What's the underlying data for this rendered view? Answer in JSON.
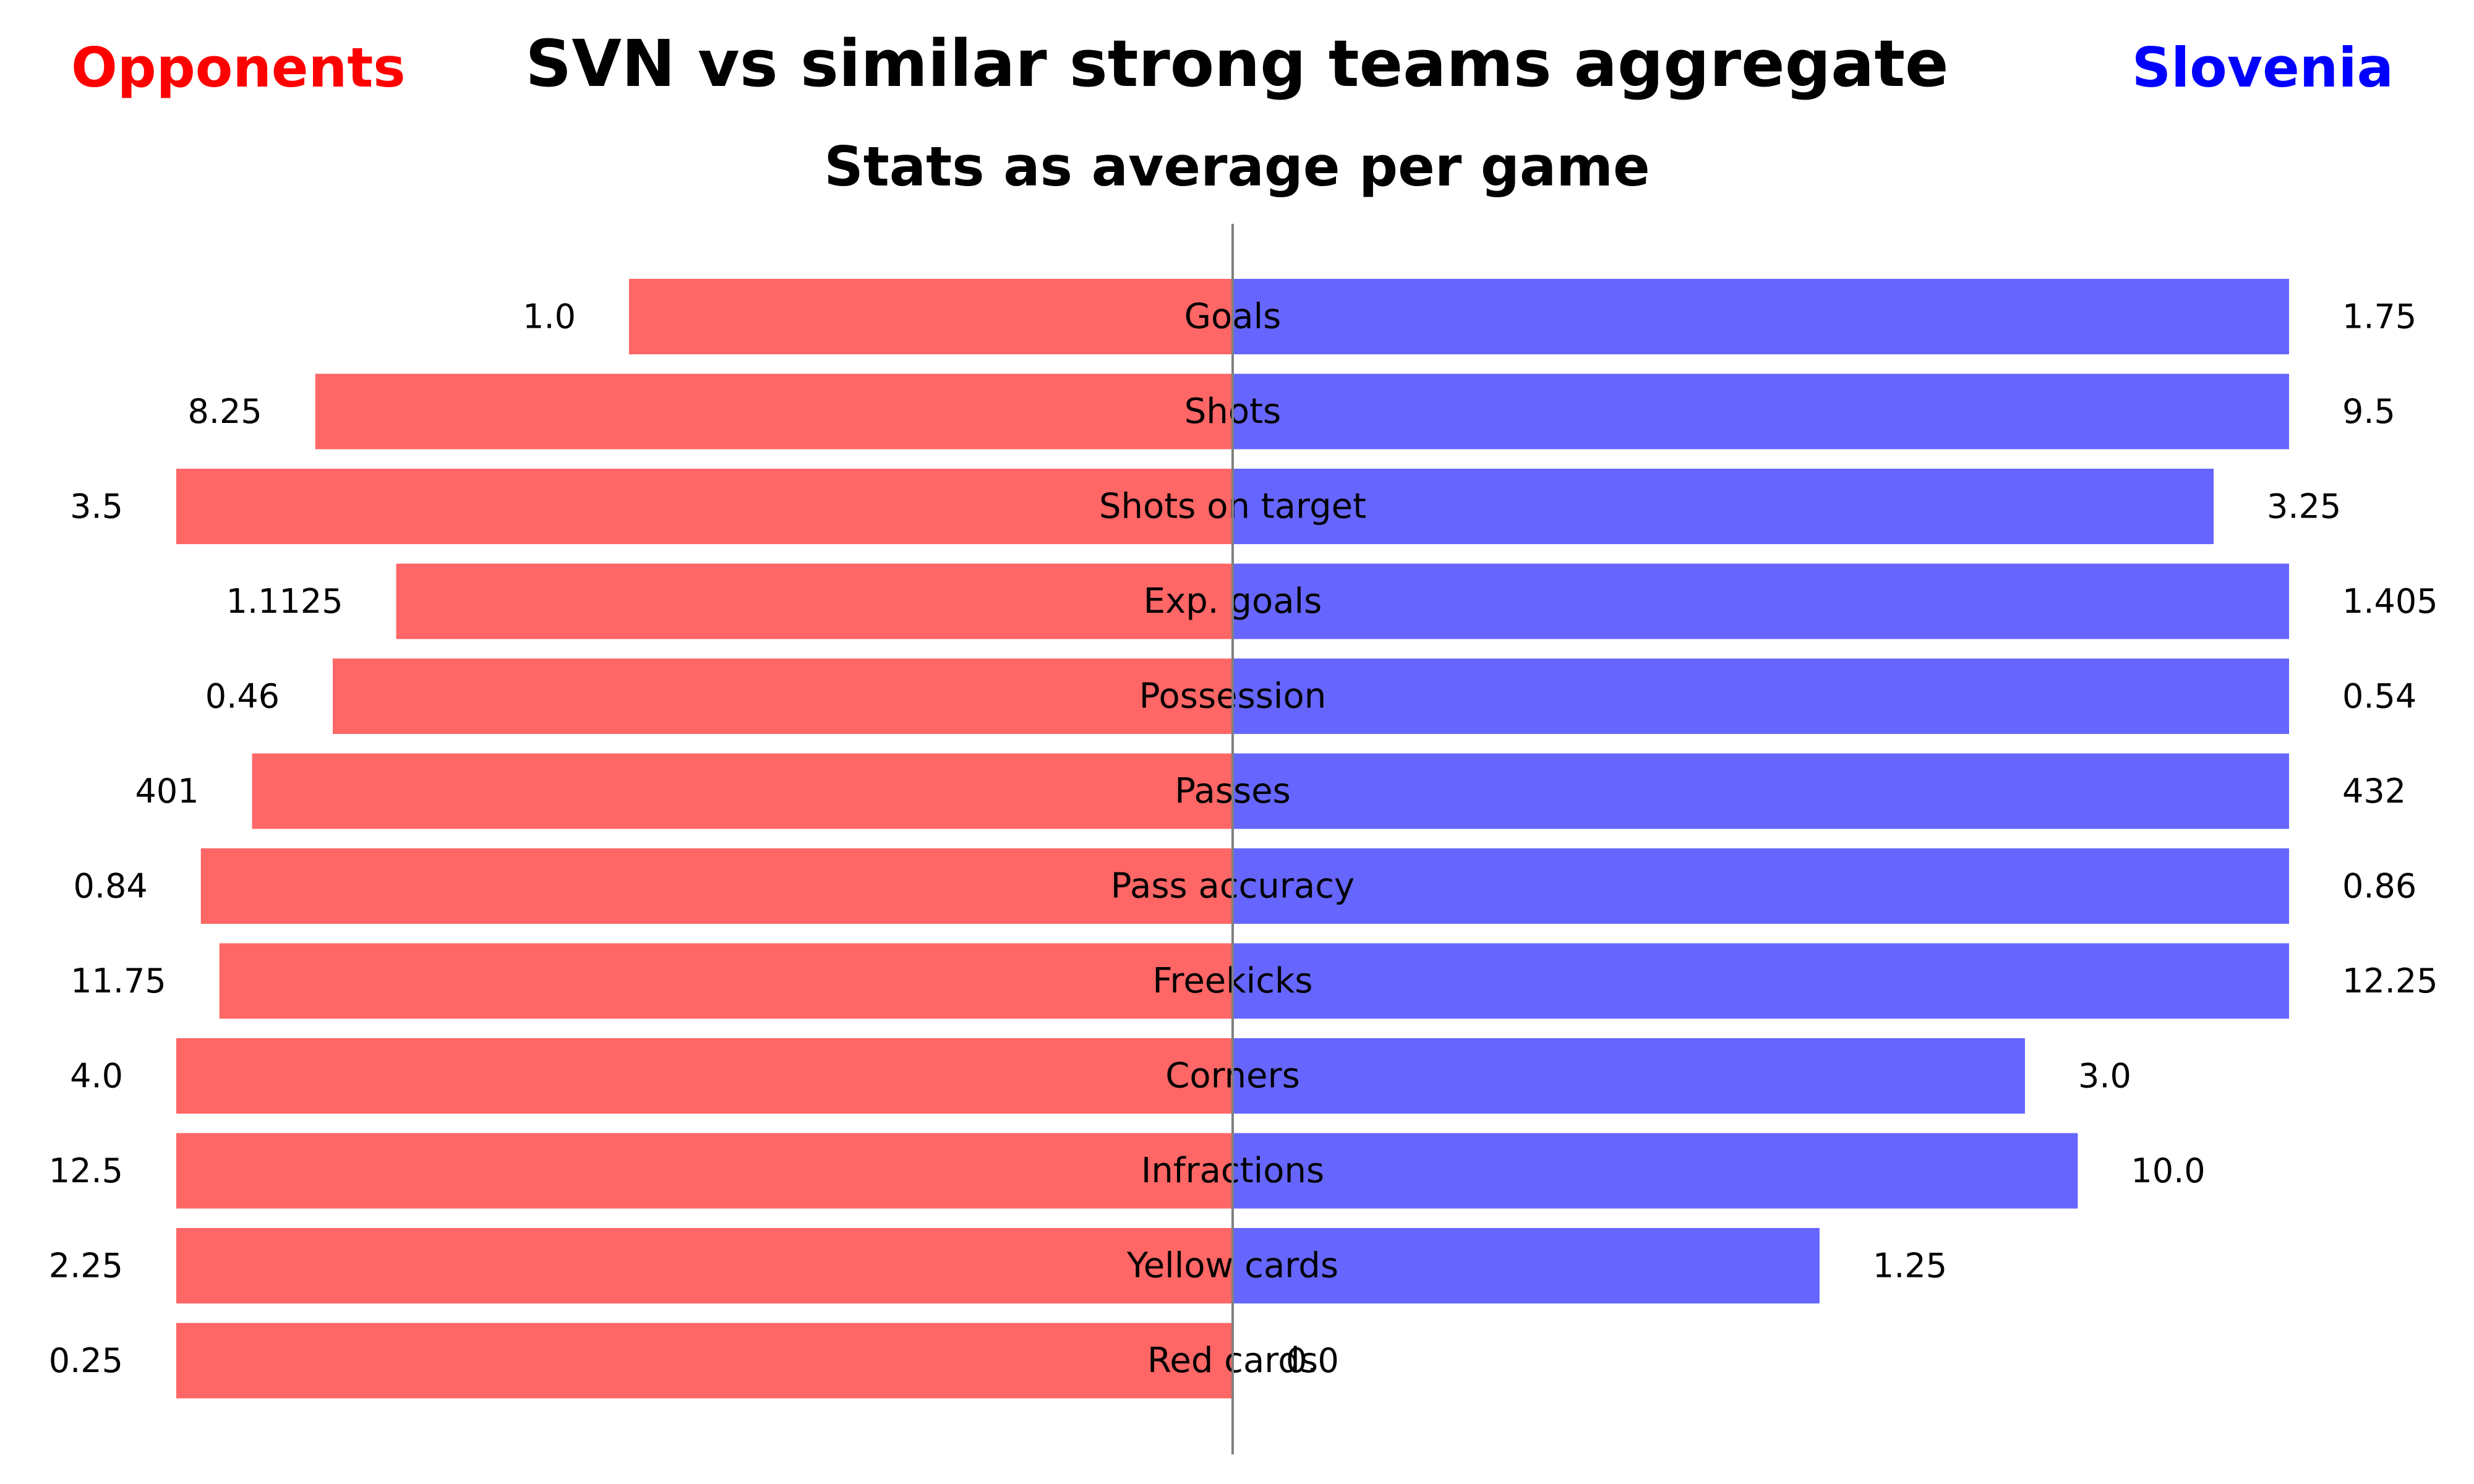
{
  "title": "SVN vs similar strong teams aggregate",
  "subtitle": "Stats as average per game",
  "left_team_label": "Opponents",
  "right_team_label": "Slovenia",
  "colors": {
    "left_bar": "#ff6666",
    "right_bar": "#6666ff",
    "left_label": "#ff0000",
    "right_label": "#0000ff",
    "center_line": "#808080"
  },
  "chart_data": {
    "type": "bar",
    "orientation": "horizontal-diverging",
    "categories": [
      "Goals",
      "Shots",
      "Shots on target",
      "Exp. goals",
      "Possession",
      "Passes",
      "Pass accuracy",
      "Freekicks",
      "Corners",
      "Infractions",
      "Yellow cards",
      "Red cards"
    ],
    "series": [
      {
        "name": "Opponents",
        "values": [
          1.0,
          8.25,
          3.5,
          1.1125,
          0.46,
          401,
          0.84,
          11.75,
          4.0,
          12.5,
          2.25,
          0.25
        ],
        "labels": [
          "1.0",
          "8.25",
          "3.5",
          "1.1125",
          "0.46",
          "401",
          "0.84",
          "11.75",
          "4.0",
          "12.5",
          "2.25",
          "0.25"
        ]
      },
      {
        "name": "Slovenia",
        "values": [
          1.75,
          9.5,
          3.25,
          1.405,
          0.54,
          432,
          0.86,
          12.25,
          3.0,
          10.0,
          1.25,
          0.0
        ],
        "labels": [
          "1.75",
          "9.5",
          "3.25",
          "1.405",
          "0.54",
          "432",
          "0.86",
          "12.25",
          "3.0",
          "10.0",
          "1.25",
          "0.0"
        ]
      }
    ],
    "xlabel": "",
    "ylabel": "",
    "grid": false,
    "legend": "none"
  }
}
